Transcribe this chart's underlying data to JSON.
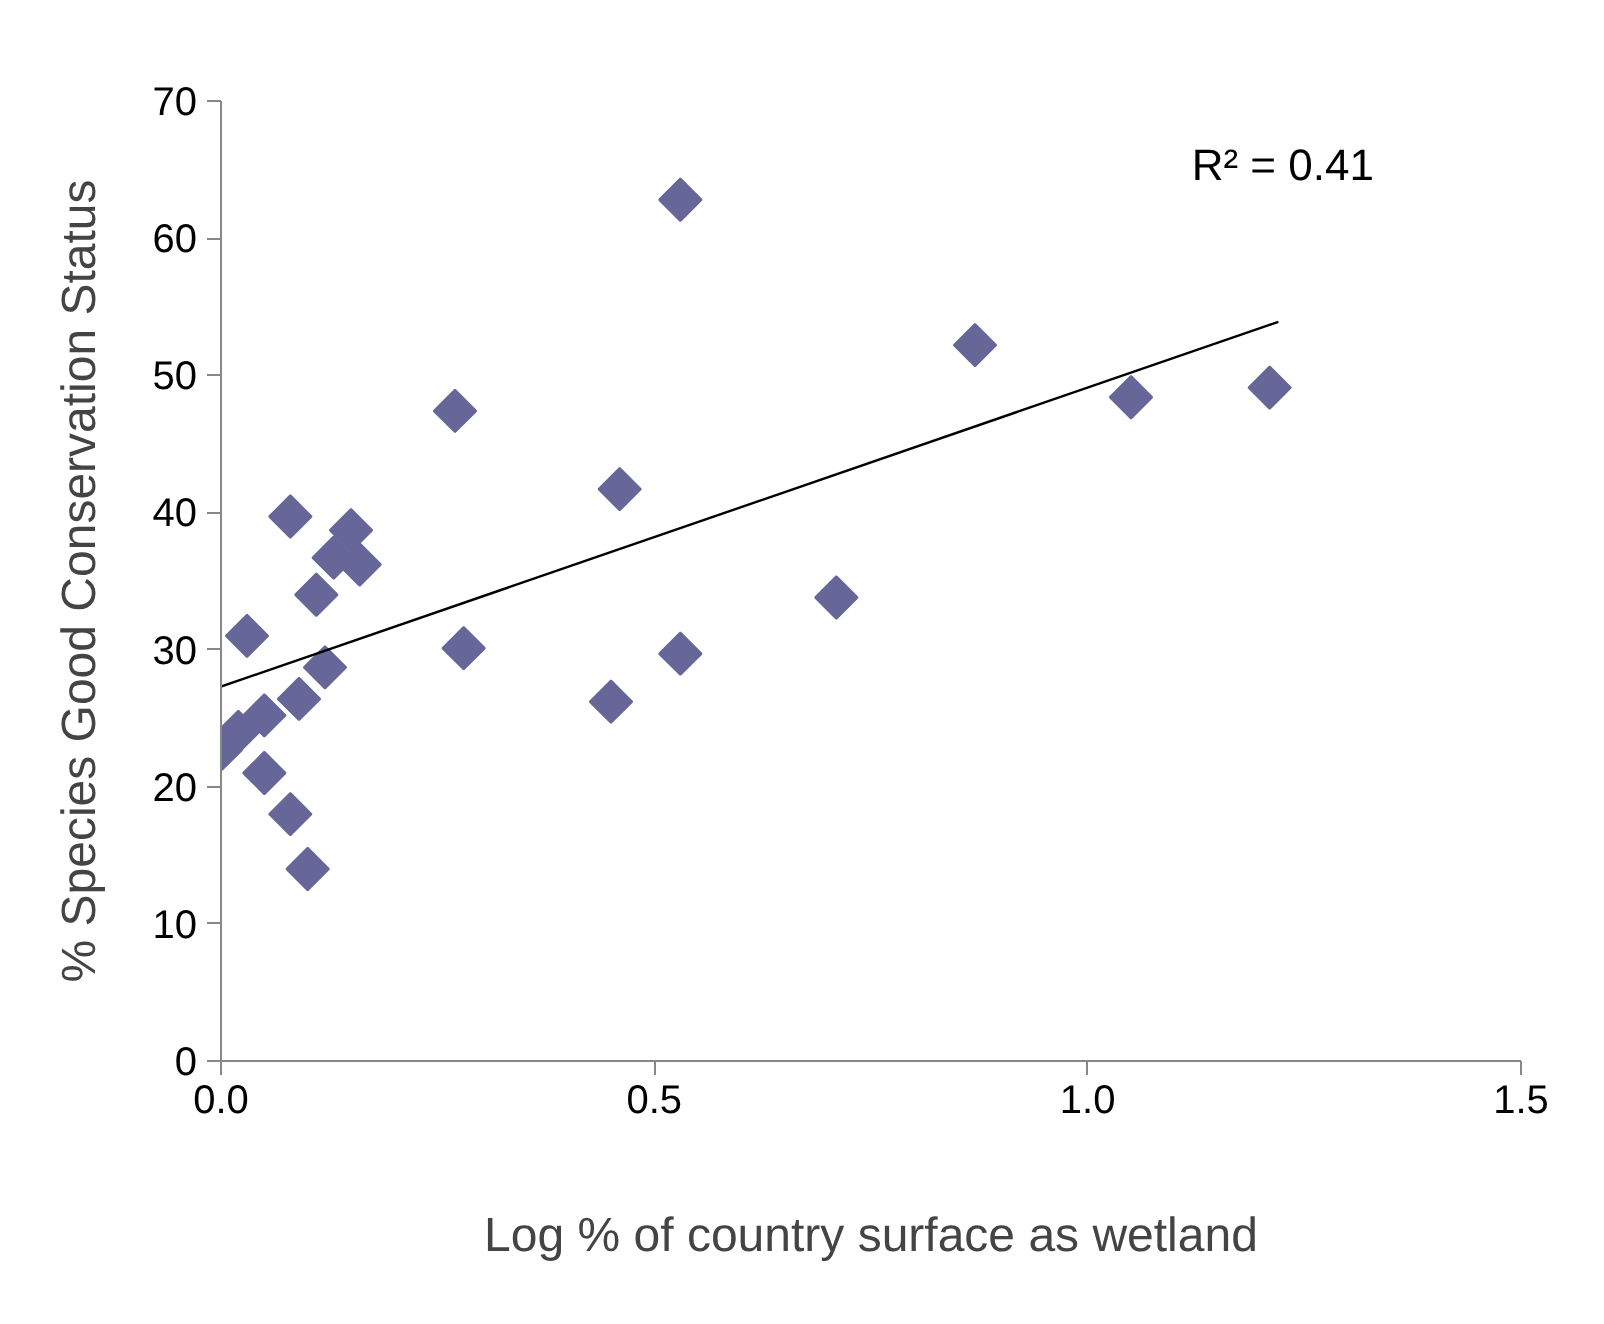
{
  "chart_data": {
    "type": "scatter",
    "xlabel": "Log % of country surface as wetland",
    "ylabel": "% Species Good Conservation Status",
    "xlim": [
      0,
      1.5
    ],
    "ylim": [
      0,
      70
    ],
    "xticks": [
      {
        "value": 0,
        "label": "0.0"
      },
      0.5,
      {
        "value": 1,
        "label": "1.0"
      },
      1.5
    ],
    "yticks": [
      0,
      10,
      20,
      30,
      40,
      50,
      60,
      70
    ],
    "grid": false,
    "marker": "diamond",
    "series": [
      {
        "color": "#666699",
        "x": [
          0.0,
          0.02,
          0.03,
          0.05,
          0.05,
          0.08,
          0.08,
          0.09,
          0.1,
          0.11,
          0.12,
          0.13,
          0.15,
          0.16,
          0.27,
          0.28,
          0.45,
          0.46,
          0.53,
          0.53,
          0.71,
          0.87,
          1.05,
          1.21
        ],
        "values": [
          22.7,
          24,
          31,
          25.2,
          21,
          39.7,
          18,
          26.4,
          14,
          34,
          28.7,
          36.7,
          38.7,
          36.2,
          47.4,
          30.1,
          26.2,
          41.7,
          62.8,
          29.7,
          33.8,
          52.2,
          48.4,
          49.1
        ]
      },
      {
        "type": "line",
        "marker": "none",
        "color": "#000000",
        "x": [
          0,
          1.22
        ],
        "values": [
          27.3,
          53.9
        ]
      }
    ],
    "annotations": [
      "R² = 0.41"
    ]
  }
}
